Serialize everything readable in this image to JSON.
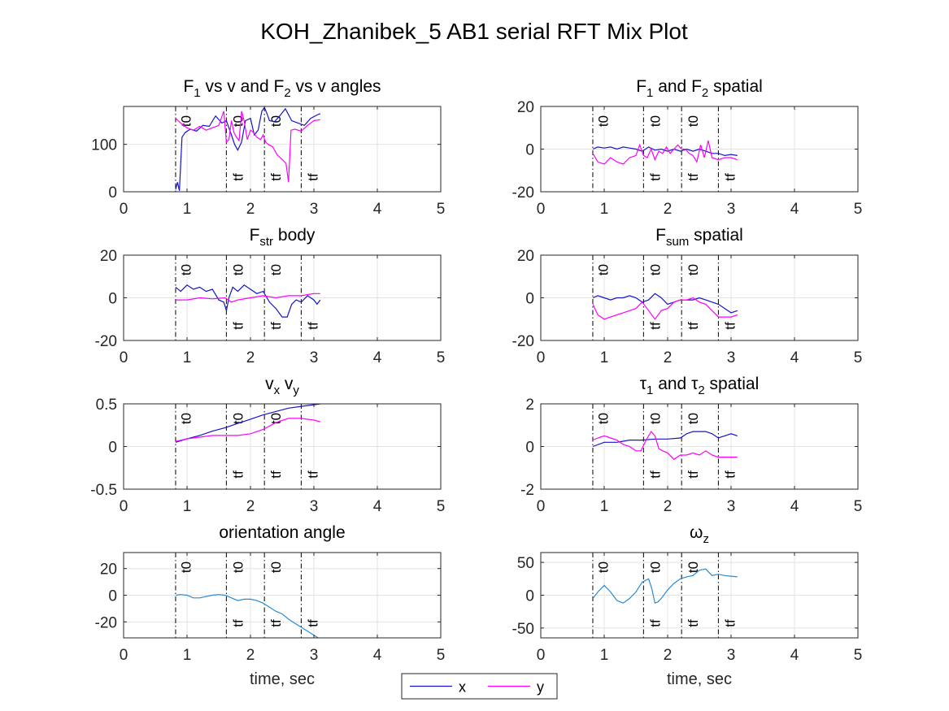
{
  "figure": {
    "title": "KOH_Zhanibek_5 AB1 serial RFT Mix Plot"
  },
  "colors": {
    "x": "#1515c8",
    "y": "#ff00ff",
    "single": "#2b8ad0",
    "grid": "#e3e3e3",
    "axis": "#262626"
  },
  "legend": {
    "position": "bottom-center",
    "entries": [
      {
        "label": "x",
        "color": "#1515c8"
      },
      {
        "label": "y",
        "color": "#ff00ff"
      }
    ]
  },
  "event_lines": [
    0.82,
    1.62,
    2.22,
    2.8
  ],
  "t0_positions": [
    1.0,
    1.82,
    2.42
  ],
  "tf_positions": [
    1.82,
    2.42,
    3.0
  ],
  "marker_labels": {
    "t0": "t0",
    "tf": "tf"
  },
  "chart_data": [
    {
      "type": "line",
      "title_main": "F",
      "title_sub1": "1",
      "title_mid": " vs v and F",
      "title_sub2": "2",
      "title_end": " vs v angles",
      "xlabel": "",
      "ylabel": "",
      "xlim": [
        0,
        5
      ],
      "ylim": [
        0,
        180
      ],
      "xticks": [
        0,
        1,
        2,
        3,
        4,
        5
      ],
      "yticks": [
        0,
        100
      ],
      "ytick_labels": [
        "0",
        "100"
      ],
      "grid": true,
      "series": [
        {
          "name": "x",
          "x": [
            0.82,
            0.85,
            0.88,
            0.92,
            0.97,
            1.05,
            1.15,
            1.25,
            1.35,
            1.45,
            1.55,
            1.62,
            1.66,
            1.7,
            1.75,
            1.8,
            1.86,
            1.92,
            2.0,
            2.06,
            2.12,
            2.18,
            2.22,
            2.26,
            2.3,
            2.38,
            2.46,
            2.55,
            2.65,
            2.75,
            2.85,
            2.95,
            3.05,
            3.1
          ],
          "values": [
            5,
            20,
            2,
            115,
            125,
            132,
            128,
            140,
            138,
            160,
            145,
            150,
            135,
            120,
            100,
            88,
            105,
            150,
            155,
            120,
            130,
            170,
            178,
            165,
            150,
            148,
            160,
            175,
            150,
            145,
            140,
            155,
            162,
            165
          ]
        },
        {
          "name": "y",
          "x": [
            0.82,
            0.9,
            1.0,
            1.1,
            1.2,
            1.3,
            1.4,
            1.5,
            1.58,
            1.62,
            1.66,
            1.7,
            1.74,
            1.78,
            1.82,
            1.86,
            1.9,
            1.95,
            2.0,
            2.05,
            2.1,
            2.16,
            2.2,
            2.24,
            2.28,
            2.35,
            2.42,
            2.5,
            2.56,
            2.6,
            2.64,
            2.7,
            2.8,
            2.9,
            3.0,
            3.1
          ],
          "values": [
            155,
            145,
            135,
            130,
            138,
            130,
            135,
            140,
            170,
            105,
            110,
            150,
            125,
            115,
            108,
            170,
            150,
            110,
            130,
            125,
            115,
            110,
            120,
            105,
            100,
            95,
            78,
            68,
            60,
            20,
            130,
            132,
            128,
            140,
            150,
            152
          ]
        }
      ]
    },
    {
      "type": "line",
      "title_main": "F",
      "title_sub1": "1",
      "title_mid": " and F",
      "title_sub2": "2",
      "title_end": " spatial",
      "xlabel": "",
      "ylabel": "",
      "xlim": [
        0,
        5
      ],
      "ylim": [
        -20,
        20
      ],
      "xticks": [
        0,
        1,
        2,
        3,
        4,
        5
      ],
      "yticks": [
        -20,
        0,
        20
      ],
      "ytick_labels": [
        "-20",
        "0",
        "20"
      ],
      "grid": true,
      "series": [
        {
          "name": "x",
          "x": [
            0.82,
            0.9,
            1.0,
            1.1,
            1.2,
            1.3,
            1.4,
            1.5,
            1.6,
            1.7,
            1.8,
            1.9,
            2.0,
            2.1,
            2.2,
            2.3,
            2.4,
            2.5,
            2.6,
            2.7,
            2.8,
            2.9,
            3.0,
            3.1
          ],
          "values": [
            0,
            1,
            0.5,
            1,
            0,
            1,
            0.5,
            0,
            -1,
            1,
            -0.5,
            0,
            -1,
            0,
            -1,
            0,
            -1,
            0,
            -1,
            -2,
            -2,
            -3,
            -2.5,
            -3
          ]
        },
        {
          "name": "y",
          "x": [
            0.82,
            0.9,
            1.0,
            1.1,
            1.2,
            1.3,
            1.4,
            1.5,
            1.56,
            1.62,
            1.68,
            1.74,
            1.8,
            1.86,
            1.92,
            1.98,
            2.04,
            2.1,
            2.16,
            2.22,
            2.28,
            2.34,
            2.4,
            2.46,
            2.52,
            2.58,
            2.64,
            2.7,
            2.8,
            2.9,
            3.0,
            3.1
          ],
          "values": [
            -2,
            -6,
            -7,
            -4,
            -6,
            -7,
            -4,
            -3,
            2,
            -3,
            -4,
            0,
            -5,
            -1,
            -2,
            1,
            -2,
            0,
            2,
            0,
            0,
            -2,
            -3,
            -6,
            2,
            -4,
            4,
            -4,
            -5,
            -4,
            -4,
            -5
          ]
        }
      ]
    },
    {
      "type": "line",
      "title_main": "F",
      "title_sub1": "str",
      "title_mid": " body",
      "title_sub2": "",
      "title_end": "",
      "xlabel": "",
      "ylabel": "",
      "xlim": [
        0,
        5
      ],
      "ylim": [
        -20,
        20
      ],
      "xticks": [
        0,
        1,
        2,
        3,
        4,
        5
      ],
      "yticks": [
        -20,
        0,
        20
      ],
      "ytick_labels": [
        "-20",
        "0",
        "20"
      ],
      "grid": true,
      "series": [
        {
          "name": "x",
          "x": [
            0.82,
            0.9,
            1.0,
            1.1,
            1.2,
            1.3,
            1.4,
            1.5,
            1.58,
            1.62,
            1.66,
            1.72,
            1.8,
            1.9,
            2.0,
            2.1,
            2.2,
            2.3,
            2.4,
            2.5,
            2.58,
            2.65,
            2.72,
            2.8,
            2.9,
            3.0,
            3.05,
            3.1
          ],
          "values": [
            5,
            3,
            6,
            4,
            5,
            3,
            4,
            -1,
            -2,
            -6,
            0,
            5,
            3,
            6,
            4,
            2,
            3,
            -2,
            -5,
            -9,
            -9,
            -3,
            -1,
            -2,
            1,
            -1,
            -3,
            -1
          ]
        },
        {
          "name": "y",
          "x": [
            0.82,
            1.0,
            1.2,
            1.4,
            1.6,
            1.7,
            1.8,
            2.0,
            2.2,
            2.4,
            2.6,
            2.8,
            3.0,
            3.1
          ],
          "values": [
            -1,
            -1,
            0,
            -0.5,
            0,
            -2,
            -1,
            0,
            1,
            0,
            1,
            1,
            2,
            2
          ]
        }
      ]
    },
    {
      "type": "line",
      "title_main": "F",
      "title_sub1": "sum",
      "title_mid": " spatial",
      "title_sub2": "",
      "title_end": "",
      "xlabel": "",
      "ylabel": "",
      "xlim": [
        0,
        5
      ],
      "ylim": [
        -20,
        20
      ],
      "xticks": [
        0,
        1,
        2,
        3,
        4,
        5
      ],
      "yticks": [
        -20,
        0,
        20
      ],
      "ytick_labels": [
        "-20",
        "0",
        "20"
      ],
      "grid": true,
      "series": [
        {
          "name": "x",
          "x": [
            0.82,
            0.9,
            1.0,
            1.1,
            1.2,
            1.3,
            1.4,
            1.5,
            1.6,
            1.7,
            1.8,
            1.9,
            2.0,
            2.1,
            2.2,
            2.3,
            2.4,
            2.5,
            2.6,
            2.7,
            2.8,
            2.9,
            3.0,
            3.1
          ],
          "values": [
            0,
            1,
            0,
            -1,
            0,
            0,
            1,
            0,
            -2,
            -1,
            2,
            0,
            -3,
            -2,
            -1,
            -1,
            -1,
            0,
            -1,
            -2,
            -3,
            -5,
            -7,
            -6
          ]
        },
        {
          "name": "y",
          "x": [
            0.82,
            0.9,
            1.0,
            1.1,
            1.2,
            1.3,
            1.4,
            1.5,
            1.6,
            1.7,
            1.8,
            1.9,
            2.0,
            2.1,
            2.2,
            2.3,
            2.4,
            2.5,
            2.6,
            2.7,
            2.8,
            2.9,
            3.0,
            3.1
          ],
          "values": [
            -3,
            -8,
            -10,
            -9,
            -8,
            -7,
            -6,
            -5,
            -2,
            -6,
            -10,
            -6,
            -5,
            -2,
            -1,
            -1,
            0,
            -2,
            -3,
            -6,
            -9,
            -9,
            -9,
            -8
          ]
        }
      ]
    },
    {
      "type": "line",
      "title_main": "v",
      "title_sub1": "x",
      "title_mid": " v",
      "title_sub2": "y",
      "title_end": "",
      "xlabel": "",
      "ylabel": "",
      "xlim": [
        0,
        5
      ],
      "ylim": [
        -0.5,
        0.5
      ],
      "xticks": [
        0,
        1,
        2,
        3,
        4,
        5
      ],
      "yticks": [
        -0.5,
        0,
        0.5
      ],
      "ytick_labels": [
        "-0.5",
        "0",
        "0.5"
      ],
      "grid": true,
      "series": [
        {
          "name": "x",
          "x": [
            0.82,
            1.0,
            1.2,
            1.4,
            1.6,
            1.8,
            2.0,
            2.2,
            2.4,
            2.6,
            2.8,
            3.0,
            3.1
          ],
          "values": [
            0.05,
            0.09,
            0.13,
            0.18,
            0.22,
            0.27,
            0.32,
            0.37,
            0.41,
            0.45,
            0.47,
            0.49,
            0.5
          ]
        },
        {
          "name": "y",
          "x": [
            0.82,
            1.0,
            1.2,
            1.4,
            1.6,
            1.8,
            2.0,
            2.2,
            2.4,
            2.6,
            2.8,
            3.0,
            3.1
          ],
          "values": [
            0.06,
            0.09,
            0.11,
            0.13,
            0.13,
            0.13,
            0.15,
            0.2,
            0.28,
            0.33,
            0.33,
            0.31,
            0.29
          ]
        }
      ]
    },
    {
      "type": "line",
      "title_main": "τ",
      "title_sub1": "1",
      "title_mid": " and τ",
      "title_sub2": "2",
      "title_end": " spatial",
      "xlabel": "",
      "ylabel": "",
      "xlim": [
        0,
        5
      ],
      "ylim": [
        -2,
        2
      ],
      "xticks": [
        0,
        1,
        2,
        3,
        4,
        5
      ],
      "yticks": [
        -2,
        0,
        2
      ],
      "ytick_labels": [
        "-2",
        "0",
        "2"
      ],
      "grid": true,
      "series": [
        {
          "name": "x",
          "x": [
            0.82,
            1.0,
            1.2,
            1.4,
            1.6,
            1.8,
            2.0,
            2.2,
            2.3,
            2.4,
            2.5,
            2.6,
            2.7,
            2.8,
            2.9,
            3.0,
            3.1
          ],
          "values": [
            0,
            0.2,
            0.2,
            0.3,
            0.3,
            0.35,
            0.35,
            0.4,
            0.6,
            0.7,
            0.7,
            0.7,
            0.6,
            0.4,
            0.5,
            0.6,
            0.5
          ]
        },
        {
          "name": "y",
          "x": [
            0.82,
            0.9,
            1.0,
            1.1,
            1.2,
            1.3,
            1.4,
            1.5,
            1.58,
            1.66,
            1.74,
            1.8,
            1.86,
            1.92,
            2.0,
            2.1,
            2.2,
            2.3,
            2.4,
            2.5,
            2.6,
            2.7,
            2.8,
            2.9,
            3.0,
            3.1
          ],
          "values": [
            0.3,
            0.4,
            0.5,
            0.4,
            0.3,
            0.1,
            0,
            -0.2,
            -0.2,
            0.3,
            0.7,
            0.5,
            -0.1,
            -0.2,
            -0.3,
            -0.6,
            -0.4,
            -0.4,
            -0.3,
            -0.4,
            -0.2,
            -0.4,
            -0.5,
            -0.5,
            -0.5,
            -0.5
          ]
        }
      ]
    },
    {
      "type": "line",
      "title_main": "orientation angle",
      "title_sub1": "",
      "title_mid": "",
      "title_sub2": "",
      "title_end": "",
      "xlabel": "time, sec",
      "ylabel": "",
      "xlim": [
        0,
        5
      ],
      "ylim": [
        -32,
        32
      ],
      "xticks": [
        0,
        1,
        2,
        3,
        4,
        5
      ],
      "yticks": [
        -20,
        0,
        20
      ],
      "ytick_labels": [
        "-20",
        "0",
        "20"
      ],
      "grid": true,
      "series": [
        {
          "name": "",
          "x": [
            0.82,
            0.9,
            1.0,
            1.1,
            1.2,
            1.3,
            1.4,
            1.5,
            1.6,
            1.7,
            1.8,
            1.9,
            2.0,
            2.1,
            2.2,
            2.3,
            2.4,
            2.5,
            2.6,
            2.7,
            2.8,
            2.9,
            3.0,
            3.1
          ],
          "values": [
            0,
            0.5,
            0,
            -2,
            -2,
            -1,
            0,
            0.5,
            0,
            -2,
            -4,
            -3,
            -3,
            -4,
            -6,
            -9,
            -12,
            -14,
            -18,
            -21,
            -24,
            -27,
            -30,
            -33
          ]
        }
      ]
    },
    {
      "type": "line",
      "title_main": "ω",
      "title_sub1": "z",
      "title_mid": "",
      "title_sub2": "",
      "title_end": "",
      "xlabel": "time, sec",
      "ylabel": "",
      "xlim": [
        0,
        5
      ],
      "ylim": [
        -65,
        65
      ],
      "xticks": [
        0,
        1,
        2,
        3,
        4,
        5
      ],
      "yticks": [
        -50,
        0,
        50
      ],
      "ytick_labels": [
        "-50",
        "0",
        "50"
      ],
      "grid": true,
      "series": [
        {
          "name": "",
          "x": [
            0.82,
            0.9,
            1.0,
            1.1,
            1.2,
            1.3,
            1.4,
            1.5,
            1.6,
            1.7,
            1.75,
            1.8,
            1.85,
            1.9,
            2.0,
            2.1,
            2.2,
            2.3,
            2.4,
            2.5,
            2.6,
            2.7,
            2.8,
            2.9,
            3.0,
            3.1
          ],
          "values": [
            -5,
            5,
            15,
            5,
            -8,
            -12,
            -5,
            5,
            20,
            25,
            10,
            -12,
            -10,
            -5,
            8,
            18,
            25,
            28,
            30,
            38,
            40,
            30,
            32,
            30,
            29,
            28
          ]
        }
      ]
    }
  ]
}
